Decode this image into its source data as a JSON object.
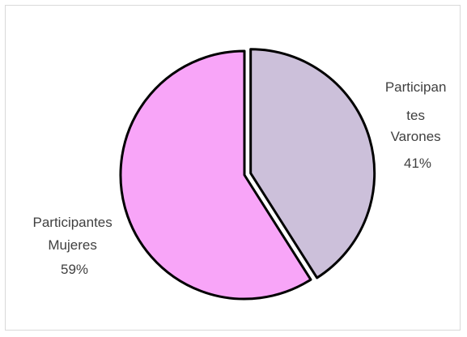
{
  "chart_data": {
    "type": "pie",
    "title": "",
    "slices": [
      {
        "name": "Participantes Varones",
        "value": 41,
        "display": "41%",
        "label_lines": [
          "Participan",
          "tes",
          "Varones"
        ],
        "color": "#ccc0da",
        "exploded": true
      },
      {
        "name": "Participantes Mujeres",
        "value": 59,
        "display": "59%",
        "label_lines": [
          "Participantes",
          "Mujeres"
        ],
        "color": "#f8a5f8",
        "exploded": false
      }
    ],
    "start_angle_deg": 0,
    "direction": "clockwise",
    "outline_color": "#000000",
    "legend": "none"
  }
}
